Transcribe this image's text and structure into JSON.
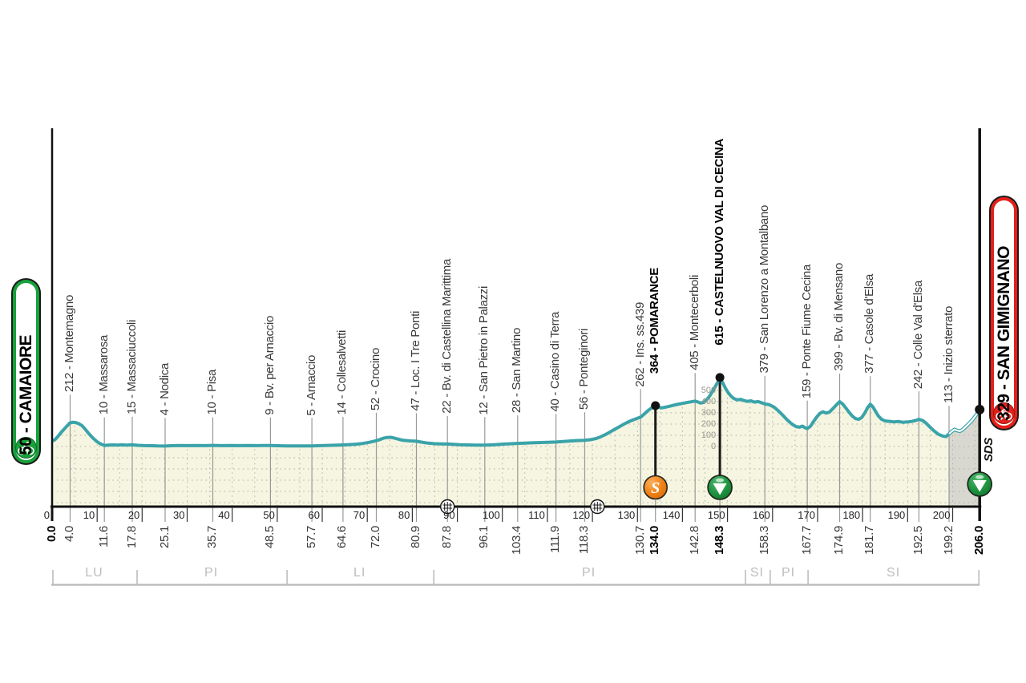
{
  "start_badge": {
    "label": "50 - CAMAIORE",
    "color": "#17a13b"
  },
  "finish_badge": {
    "label": "329 - SAN GIMIGNANO",
    "color": "#e3211a"
  },
  "sds_label": "SDS",
  "colors": {
    "profile_line": "#3aa3a9",
    "profile_fill": "#f5f5e1",
    "gravel_fill": "#d8d8d0",
    "grid_dot": "#b4b4a4",
    "leader_line": "#999999",
    "axis": "#111111",
    "province": "#bdbdbd",
    "sprint_orange": "#f08318",
    "kom_green": "#1f9440",
    "text": "#3a3a3a"
  },
  "chart_data": {
    "type": "area",
    "x_unit": "km",
    "y_unit": "m",
    "x_range": [
      0,
      206
    ],
    "total_km": 206.0,
    "km_axis_ticks": [
      0,
      10,
      20,
      30,
      40,
      50,
      60,
      70,
      80,
      90,
      100,
      110,
      120,
      130,
      140,
      150,
      160,
      170,
      180,
      190,
      200
    ],
    "elevation_scale": {
      "at_km": 148.3,
      "values": [
        500,
        400,
        300,
        200,
        100,
        0
      ]
    },
    "gravel_from_km": 199.2,
    "level_crossings_km": [
      87.8,
      121.1
    ],
    "waypoints": [
      {
        "km": 0.0,
        "ele": 50,
        "name": null,
        "bold": true,
        "marker": null
      },
      {
        "km": 4.0,
        "ele": 212,
        "name": "Montemagno",
        "bold": false,
        "marker": null
      },
      {
        "km": 11.6,
        "ele": 10,
        "name": "Massarosa",
        "bold": false,
        "marker": null
      },
      {
        "km": 17.8,
        "ele": 15,
        "name": "Massaciuccoli",
        "bold": false,
        "marker": null
      },
      {
        "km": 25.1,
        "ele": 4,
        "name": "Nodica",
        "bold": false,
        "marker": null
      },
      {
        "km": 35.7,
        "ele": 10,
        "name": "Pisa",
        "bold": false,
        "marker": null
      },
      {
        "km": 48.5,
        "ele": 9,
        "name": "Bv. per Arnaccio",
        "bold": false,
        "marker": null
      },
      {
        "km": 57.7,
        "ele": 5,
        "name": "Arnaccio",
        "bold": false,
        "marker": null
      },
      {
        "km": 64.6,
        "ele": 14,
        "name": "Collesalvetti",
        "bold": false,
        "marker": null
      },
      {
        "km": 72.0,
        "ele": 52,
        "name": "Crocino",
        "bold": false,
        "marker": null
      },
      {
        "km": 80.9,
        "ele": 47,
        "name": "Loc. I Tre Ponti",
        "bold": false,
        "marker": null
      },
      {
        "km": 87.8,
        "ele": 22,
        "name": "Bv. di Castellina Marittima",
        "bold": false,
        "marker": null
      },
      {
        "km": 96.1,
        "ele": 12,
        "name": "San Pietro in Palazzi",
        "bold": false,
        "marker": null
      },
      {
        "km": 103.4,
        "ele": 28,
        "name": "San Martino",
        "bold": false,
        "marker": null
      },
      {
        "km": 111.9,
        "ele": 40,
        "name": "Casino di Terra",
        "bold": false,
        "marker": null
      },
      {
        "km": 118.3,
        "ele": 56,
        "name": "Ponteginori",
        "bold": false,
        "marker": null
      },
      {
        "km": 130.7,
        "ele": 262,
        "name": "Ins. ss.439",
        "bold": false,
        "marker": null
      },
      {
        "km": 134.0,
        "ele": 364,
        "name": "POMARANCE",
        "bold": true,
        "marker": "sprint"
      },
      {
        "km": 142.8,
        "ele": 405,
        "name": "Montecerboli",
        "bold": false,
        "marker": null
      },
      {
        "km": 148.3,
        "ele": 615,
        "name": "CASTELNUOVO VAL DI CECINA",
        "bold": true,
        "marker": "kom"
      },
      {
        "km": 158.3,
        "ele": 379,
        "name": "San Lorenzo a Montalbano",
        "bold": false,
        "marker": null
      },
      {
        "km": 167.7,
        "ele": 159,
        "name": "Ponte Fiume Cecina",
        "bold": false,
        "marker": null
      },
      {
        "km": 174.9,
        "ele": 399,
        "name": "Bv. di Mensano",
        "bold": false,
        "marker": null
      },
      {
        "km": 181.7,
        "ele": 377,
        "name": "Casole d'Elsa",
        "bold": false,
        "marker": null
      },
      {
        "km": 192.5,
        "ele": 242,
        "name": "Colle Val d'Elsa",
        "bold": false,
        "marker": null
      },
      {
        "km": 199.2,
        "ele": 113,
        "name": "Inizio sterrato",
        "bold": false,
        "marker": null
      },
      {
        "km": 206.0,
        "ele": 329,
        "name": null,
        "bold": true,
        "marker": "kom-finish"
      }
    ],
    "provinces": [
      {
        "label": "LU",
        "from_km": 0,
        "to_km": 18.7
      },
      {
        "label": "PI",
        "from_km": 18.7,
        "to_km": 52.0
      },
      {
        "label": "LI",
        "from_km": 52.0,
        "to_km": 84.6
      },
      {
        "label": "PI",
        "from_km": 84.6,
        "to_km": 153.8
      },
      {
        "label": "SI",
        "from_km": 153.8,
        "to_km": 159.3
      },
      {
        "label": "PI",
        "from_km": 159.3,
        "to_km": 167.7
      },
      {
        "label": "SI",
        "from_km": 167.7,
        "to_km": 206.0
      }
    ],
    "profile": [
      [
        0,
        50
      ],
      [
        0.6,
        60
      ],
      [
        1.2,
        85
      ],
      [
        2,
        125
      ],
      [
        3,
        170
      ],
      [
        3.7,
        200
      ],
      [
        4,
        212
      ],
      [
        4.6,
        216
      ],
      [
        5.2,
        214
      ],
      [
        5.8,
        206
      ],
      [
        6.6,
        188
      ],
      [
        7.4,
        152
      ],
      [
        8.2,
        112
      ],
      [
        9,
        78
      ],
      [
        10,
        42
      ],
      [
        10.8,
        22
      ],
      [
        11.6,
        10
      ],
      [
        12.5,
        12
      ],
      [
        13.5,
        14
      ],
      [
        14.5,
        13
      ],
      [
        15.5,
        15
      ],
      [
        16.5,
        13
      ],
      [
        17.8,
        15
      ],
      [
        19,
        11
      ],
      [
        20.5,
        8
      ],
      [
        22,
        7
      ],
      [
        23.5,
        5
      ],
      [
        25.1,
        4
      ],
      [
        26.5,
        7
      ],
      [
        28,
        9
      ],
      [
        30,
        8
      ],
      [
        32,
        9
      ],
      [
        34,
        8
      ],
      [
        35.7,
        10
      ],
      [
        37.5,
        8
      ],
      [
        39.5,
        9
      ],
      [
        41.5,
        8
      ],
      [
        43.5,
        9
      ],
      [
        45.5,
        8
      ],
      [
        47,
        9
      ],
      [
        48.5,
        9
      ],
      [
        50,
        7
      ],
      [
        52,
        6
      ],
      [
        54,
        6
      ],
      [
        56,
        5
      ],
      [
        57.7,
        5
      ],
      [
        59,
        7
      ],
      [
        60.5,
        9
      ],
      [
        62,
        11
      ],
      [
        63.5,
        13
      ],
      [
        64.6,
        14
      ],
      [
        66,
        17
      ],
      [
        67.5,
        21
      ],
      [
        69,
        27
      ],
      [
        70.5,
        38
      ],
      [
        71.5,
        47
      ],
      [
        72,
        52
      ],
      [
        72.8,
        62
      ],
      [
        73.6,
        74
      ],
      [
        74.4,
        81
      ],
      [
        75.2,
        82
      ],
      [
        76,
        76
      ],
      [
        77,
        64
      ],
      [
        78,
        55
      ],
      [
        79.5,
        50
      ],
      [
        80.9,
        47
      ],
      [
        82,
        39
      ],
      [
        83.5,
        30
      ],
      [
        85,
        25
      ],
      [
        86.5,
        23
      ],
      [
        87.8,
        22
      ],
      [
        89,
        19
      ],
      [
        90.5,
        16
      ],
      [
        92,
        14
      ],
      [
        94,
        13
      ],
      [
        96.1,
        12
      ],
      [
        97.5,
        14
      ],
      [
        99,
        18
      ],
      [
        100.5,
        22
      ],
      [
        102,
        25
      ],
      [
        103.4,
        28
      ],
      [
        105,
        31
      ],
      [
        106.5,
        33
      ],
      [
        108,
        35
      ],
      [
        110,
        38
      ],
      [
        111.9,
        40
      ],
      [
        113.5,
        45
      ],
      [
        115,
        49
      ],
      [
        116.5,
        53
      ],
      [
        118.3,
        56
      ],
      [
        119.5,
        61
      ],
      [
        120.7,
        70
      ],
      [
        121.7,
        84
      ],
      [
        122.7,
        103
      ],
      [
        123.7,
        124
      ],
      [
        124.7,
        148
      ],
      [
        125.7,
        170
      ],
      [
        126.7,
        193
      ],
      [
        127.7,
        214
      ],
      [
        128.6,
        231
      ],
      [
        129.6,
        246
      ],
      [
        130.7,
        262
      ],
      [
        131.4,
        285
      ],
      [
        132.1,
        312
      ],
      [
        132.8,
        334
      ],
      [
        133.4,
        350
      ],
      [
        134,
        364
      ],
      [
        134.6,
        354
      ],
      [
        135.2,
        344
      ],
      [
        135.9,
        348
      ],
      [
        136.8,
        356
      ],
      [
        137.8,
        366
      ],
      [
        138.8,
        375
      ],
      [
        139.8,
        383
      ],
      [
        140.8,
        391
      ],
      [
        141.8,
        398
      ],
      [
        142.8,
        405
      ],
      [
        143.4,
        397
      ],
      [
        144,
        387
      ],
      [
        144.7,
        393
      ],
      [
        145.4,
        418
      ],
      [
        146,
        448
      ],
      [
        146.6,
        487
      ],
      [
        147.2,
        528
      ],
      [
        147.8,
        572
      ],
      [
        148.3,
        615
      ],
      [
        148.9,
        572
      ],
      [
        149.5,
        523
      ],
      [
        150.1,
        482
      ],
      [
        150.8,
        448
      ],
      [
        151.5,
        426
      ],
      [
        152.2,
        416
      ],
      [
        152.9,
        421
      ],
      [
        153.6,
        410
      ],
      [
        154.4,
        402
      ],
      [
        155.2,
        407
      ],
      [
        156,
        396
      ],
      [
        156.8,
        401
      ],
      [
        157.5,
        391
      ],
      [
        158.3,
        379
      ],
      [
        159.3,
        372
      ],
      [
        160.3,
        352
      ],
      [
        161.3,
        318
      ],
      [
        162.3,
        278
      ],
      [
        163.3,
        236
      ],
      [
        164.3,
        200
      ],
      [
        165.2,
        178
      ],
      [
        166,
        172
      ],
      [
        166.6,
        182
      ],
      [
        167.2,
        168
      ],
      [
        167.7,
        159
      ],
      [
        168.4,
        180
      ],
      [
        169.1,
        222
      ],
      [
        169.8,
        262
      ],
      [
        170.5,
        295
      ],
      [
        171.2,
        309
      ],
      [
        171.9,
        298
      ],
      [
        172.6,
        306
      ],
      [
        173.4,
        338
      ],
      [
        174.2,
        372
      ],
      [
        174.9,
        399
      ],
      [
        175.6,
        378
      ],
      [
        176.3,
        342
      ],
      [
        177,
        305
      ],
      [
        177.7,
        272
      ],
      [
        178.4,
        249
      ],
      [
        179.1,
        242
      ],
      [
        179.8,
        258
      ],
      [
        180.5,
        300
      ],
      [
        181.1,
        345
      ],
      [
        181.7,
        377
      ],
      [
        182.3,
        352
      ],
      [
        182.9,
        312
      ],
      [
        183.5,
        272
      ],
      [
        184.2,
        243
      ],
      [
        185,
        228
      ],
      [
        186,
        224
      ],
      [
        187,
        219
      ],
      [
        188,
        223
      ],
      [
        189,
        216
      ],
      [
        190,
        219
      ],
      [
        191,
        224
      ],
      [
        191.8,
        232
      ],
      [
        192.5,
        242
      ],
      [
        193.3,
        232
      ],
      [
        194.1,
        208
      ],
      [
        195,
        172
      ],
      [
        195.9,
        138
      ],
      [
        196.8,
        110
      ],
      [
        197.7,
        94
      ],
      [
        198.5,
        88
      ],
      [
        199.2,
        113
      ],
      [
        199.8,
        135
      ],
      [
        200.4,
        152
      ],
      [
        201,
        143
      ],
      [
        201.6,
        137
      ],
      [
        202.2,
        150
      ],
      [
        202.8,
        172
      ],
      [
        203.4,
        196
      ],
      [
        204,
        220
      ],
      [
        204.6,
        248
      ],
      [
        205.2,
        280
      ],
      [
        205.6,
        305
      ],
      [
        206,
        329
      ]
    ]
  }
}
